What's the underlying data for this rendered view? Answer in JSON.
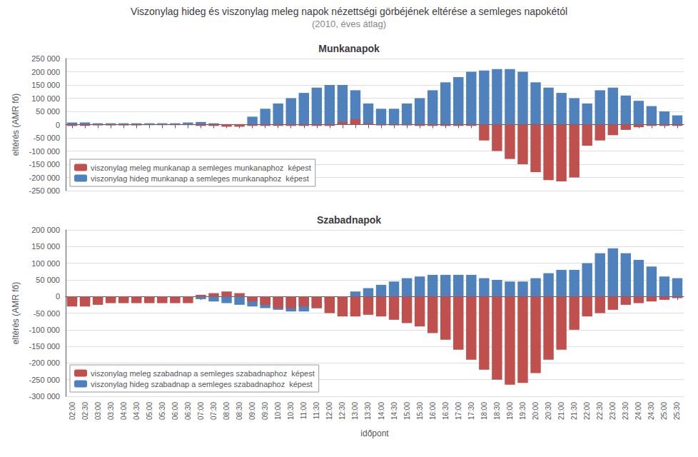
{
  "title": "Viszonylag hideg és viszonylag meleg napok nézettségi görbéjének eltérése a semleges napokétól",
  "subtitle": "(2010, éves átlag)",
  "chart_data": [
    {
      "type": "bar",
      "title": "Munkanapok",
      "ylabel": "eltérés (AMR fő)",
      "categories": [
        "02:00",
        "02:30",
        "03:00",
        "03:30",
        "04:00",
        "04:30",
        "05:00",
        "05:30",
        "06:00",
        "06:30",
        "07:00",
        "07:30",
        "08:00",
        "08:30",
        "09:00",
        "09:30",
        "10:00",
        "10:30",
        "11:00",
        "11:30",
        "12:00",
        "12:30",
        "13:00",
        "13:30",
        "14:00",
        "14:30",
        "15:00",
        "15:30",
        "16:00",
        "16:30",
        "17:00",
        "17:30",
        "18:00",
        "18:30",
        "19:00",
        "19:30",
        "20:00",
        "20:30",
        "21:00",
        "21:30",
        "22:00",
        "22:30",
        "23:00",
        "23:30",
        "24:00",
        "24:30",
        "25:00",
        "25:30"
      ],
      "series": [
        {
          "name": "viszonylag meleg munkanap a semleges munkanaphoz  képest",
          "color": "#C0504D",
          "values": [
            -5000,
            -5000,
            -3000,
            -3000,
            -3000,
            -3000,
            -2000,
            -2000,
            -2000,
            -2000,
            -5000,
            -5000,
            -8000,
            -8000,
            -5000,
            -5000,
            -5000,
            -5000,
            -5000,
            -5000,
            -5000,
            10000,
            20000,
            5000,
            -3000,
            -3000,
            -3000,
            -5000,
            -5000,
            -5000,
            -5000,
            -5000,
            -60000,
            -100000,
            -130000,
            -150000,
            -180000,
            -210000,
            -215000,
            -200000,
            -80000,
            -60000,
            -40000,
            -20000,
            -10000,
            -5000,
            -5000,
            -5000
          ]
        },
        {
          "name": "viszonylag hideg munkanap a semleges munkanaphoz  képest",
          "color": "#4F81BD",
          "values": [
            8000,
            8000,
            5000,
            5000,
            5000,
            5000,
            5000,
            5000,
            5000,
            8000,
            10000,
            5000,
            2000,
            2000,
            30000,
            60000,
            80000,
            100000,
            120000,
            140000,
            150000,
            150000,
            130000,
            80000,
            60000,
            60000,
            80000,
            100000,
            130000,
            160000,
            180000,
            200000,
            205000,
            210000,
            210000,
            200000,
            160000,
            140000,
            120000,
            100000,
            80000,
            130000,
            140000,
            110000,
            90000,
            70000,
            50000,
            35000
          ]
        }
      ],
      "ylim": [
        -250000,
        250000
      ],
      "yticks": [
        {
          "value": -250000,
          "label": "-250 000"
        },
        {
          "value": -200000,
          "label": "-200 000"
        },
        {
          "value": -150000,
          "label": "-150 000"
        },
        {
          "value": -100000,
          "label": "-100 000"
        },
        {
          "value": -50000,
          "label": "-50 000"
        },
        0,
        {
          "value": 50000,
          "label": "50 000"
        },
        {
          "value": 100000,
          "label": "100 000"
        },
        {
          "value": 150000,
          "label": "150 000"
        },
        {
          "value": 200000,
          "label": "200 000"
        },
        {
          "value": 250000,
          "label": "250 000"
        }
      ],
      "grid": true,
      "legend": "lower left",
      "tick_labels": "y"
    },
    {
      "type": "bar",
      "title": "Szabadnapok",
      "xlabel": "időpont",
      "ylabel": "eltérés (AMR fő)",
      "categories": [
        "02:00",
        "02:30",
        "03:00",
        "03:30",
        "04:00",
        "04:30",
        "05:00",
        "05:30",
        "06:00",
        "06:30",
        "07:00",
        "07:30",
        "08:00",
        "08:30",
        "09:00",
        "09:30",
        "10:00",
        "10:30",
        "11:00",
        "11:30",
        "12:00",
        "12:30",
        "13:00",
        "13:30",
        "14:00",
        "14:30",
        "15:00",
        "15:30",
        "16:00",
        "16:30",
        "17:00",
        "17:30",
        "18:00",
        "18:30",
        "19:00",
        "19:30",
        "20:00",
        "20:30",
        "21:00",
        "21:30",
        "22:00",
        "22:30",
        "23:00",
        "23:30",
        "24:00",
        "24:30",
        "25:00",
        "25:30"
      ],
      "series": [
        {
          "name": "viszonylag meleg szabadnap a semleges szabadnaphoz  képest",
          "color": "#C0504D",
          "values": [
            -30000,
            -30000,
            -25000,
            -20000,
            -20000,
            -20000,
            -20000,
            -20000,
            -20000,
            -20000,
            5000,
            10000,
            15000,
            10000,
            -15000,
            -25000,
            -35000,
            -35000,
            -30000,
            -35000,
            -50000,
            -60000,
            -60000,
            -55000,
            -60000,
            -70000,
            -80000,
            -90000,
            -110000,
            -130000,
            -160000,
            -190000,
            -220000,
            -250000,
            -265000,
            -260000,
            -230000,
            -190000,
            -160000,
            -100000,
            -60000,
            -50000,
            -40000,
            -25000,
            -20000,
            -15000,
            -10000,
            -5000
          ]
        },
        {
          "name": "viszonylag hideg szabadnap a semleges szabadnaphoz  képest",
          "color": "#4F81BD",
          "values": [
            -15000,
            -15000,
            -10000,
            -8000,
            -8000,
            -8000,
            -8000,
            -5000,
            -5000,
            -5000,
            -8000,
            -15000,
            -20000,
            -25000,
            -30000,
            -35000,
            -40000,
            -45000,
            -45000,
            -35000,
            -20000,
            -5000,
            15000,
            25000,
            35000,
            45000,
            55000,
            60000,
            65000,
            65000,
            65000,
            65000,
            55000,
            50000,
            45000,
            45000,
            55000,
            70000,
            80000,
            80000,
            100000,
            130000,
            145000,
            130000,
            110000,
            90000,
            60000,
            55000
          ]
        }
      ],
      "ylim": [
        -300000,
        200000
      ],
      "yticks": [
        {
          "value": -300000,
          "label": "-300 000"
        },
        {
          "value": -250000,
          "label": "-250 000"
        },
        {
          "value": -200000,
          "label": "-200 000"
        },
        {
          "value": -150000,
          "label": "-150 000"
        },
        {
          "value": -100000,
          "label": "-100 000"
        },
        {
          "value": -50000,
          "label": "-50 000"
        },
        0,
        {
          "value": 50000,
          "label": "50 000"
        },
        {
          "value": 100000,
          "label": "100 000"
        },
        {
          "value": 150000,
          "label": "150 000"
        },
        {
          "value": 200000,
          "label": "200 000"
        }
      ],
      "grid": true,
      "legend": "lower left"
    }
  ]
}
